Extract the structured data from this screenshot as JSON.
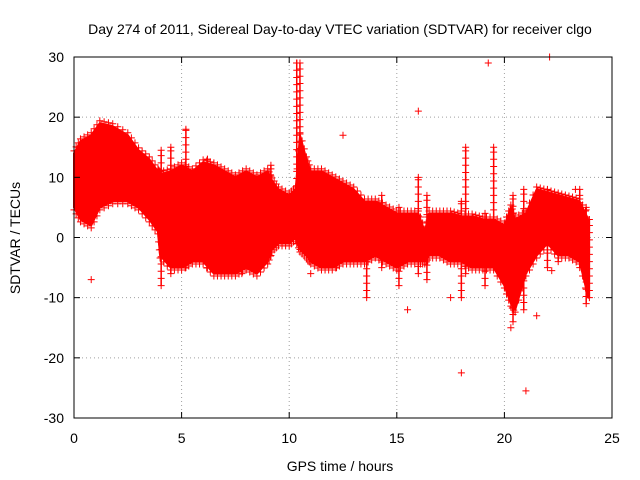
{
  "chart_data": {
    "type": "scatter",
    "title": "Day 274 of 2011, Sidereal Day-to-day VTEC variation (SDTVAR) for receiver clgo",
    "xlabel": "GPS time / hours",
    "ylabel": "SDTVAR / TECUs",
    "xlim": [
      0,
      25
    ],
    "ylim": [
      -30,
      30
    ],
    "xticks": [
      0,
      5,
      10,
      15,
      20,
      25
    ],
    "yticks": [
      -30,
      -20,
      -10,
      0,
      10,
      20,
      30
    ],
    "grid": true,
    "marker": "plus",
    "color": "#ff0000",
    "band": {
      "x": [
        0,
        0.3,
        0.8,
        1.2,
        1.8,
        2.5,
        3.0,
        3.5,
        3.9,
        4.0,
        4.5,
        5.0,
        5.5,
        6.0,
        6.5,
        7.0,
        7.5,
        8.0,
        8.5,
        9.0,
        9.2,
        9.5,
        10.0,
        10.3,
        10.5,
        10.8,
        11.0,
        11.5,
        12.0,
        12.5,
        13.0,
        13.5,
        14.0,
        14.5,
        15.0,
        15.5,
        16.0,
        16.3,
        16.5,
        17.0,
        17.5,
        18.0,
        18.5,
        19.0,
        19.5,
        20.0,
        20.3,
        20.5,
        21.0,
        21.5,
        22.0,
        22.5,
        23.0,
        23.5,
        23.9
      ],
      "upper": [
        14,
        16,
        17,
        19,
        18.5,
        17,
        14.5,
        13,
        11,
        10.5,
        11,
        12,
        11,
        12.5,
        12,
        11,
        10,
        11,
        10,
        11,
        9.5,
        8,
        7,
        8,
        17,
        13,
        11,
        11,
        10,
        9,
        8,
        6,
        6,
        5,
        4,
        4,
        4,
        1,
        4,
        4,
        4,
        3.5,
        3.5,
        3,
        3,
        2,
        5,
        3,
        4,
        8,
        7.5,
        7,
        6.5,
        6,
        3
      ],
      "lower": [
        5,
        3,
        2,
        5,
        6,
        6,
        5,
        3,
        1,
        -3,
        -5,
        -5,
        -4,
        -4,
        -6,
        -6,
        -6,
        -5,
        -6,
        -4,
        -2,
        -1,
        -1,
        0,
        -2,
        -3,
        -4,
        -5,
        -5,
        -4,
        -4,
        -4,
        -3,
        -4,
        -5,
        -4,
        -4,
        -4,
        -3,
        -3,
        -4,
        -4,
        -5,
        -5,
        -5,
        -8,
        -11,
        -12,
        -6,
        -3,
        -1,
        -3,
        -3,
        -4,
        -10
      ]
    },
    "spikes": [
      {
        "x": 0.2,
        "ymin": 6,
        "ymax": 15
      },
      {
        "x": 1.05,
        "ymin": 5,
        "ymax": 12
      },
      {
        "x": 4.05,
        "ymin": -8,
        "ymax": 14.5
      },
      {
        "x": 4.5,
        "ymin": -6,
        "ymax": 15
      },
      {
        "x": 5.2,
        "ymin": -5,
        "ymax": 18
      },
      {
        "x": 6.2,
        "ymin": -5,
        "ymax": 13
      },
      {
        "x": 7.8,
        "ymin": -6,
        "ymax": 8
      },
      {
        "x": 9.15,
        "ymin": -3,
        "ymax": 12
      },
      {
        "x": 10.35,
        "ymin": -1,
        "ymax": 29
      },
      {
        "x": 10.5,
        "ymin": -2,
        "ymax": 29
      },
      {
        "x": 12.2,
        "ymin": -5,
        "ymax": 8
      },
      {
        "x": 13.6,
        "ymin": -10,
        "ymax": 4
      },
      {
        "x": 14.3,
        "ymin": -5,
        "ymax": 7
      },
      {
        "x": 15.1,
        "ymin": -8,
        "ymax": 5
      },
      {
        "x": 16.0,
        "ymin": -6,
        "ymax": 10
      },
      {
        "x": 16.4,
        "ymin": -7,
        "ymax": 7
      },
      {
        "x": 18.0,
        "ymin": -10,
        "ymax": 6
      },
      {
        "x": 18.2,
        "ymin": -6,
        "ymax": 15
      },
      {
        "x": 19.1,
        "ymin": -8,
        "ymax": 4
      },
      {
        "x": 19.5,
        "ymin": -5,
        "ymax": 15
      },
      {
        "x": 20.4,
        "ymin": -14,
        "ymax": 7
      },
      {
        "x": 20.9,
        "ymin": -12,
        "ymax": 8
      },
      {
        "x": 22.0,
        "ymin": -5,
        "ymax": 8
      },
      {
        "x": 22.5,
        "ymin": -4,
        "ymax": 7
      },
      {
        "x": 23.5,
        "ymin": -5,
        "ymax": 8
      },
      {
        "x": 23.8,
        "ymin": -11,
        "ymax": 5
      },
      {
        "x": 23.95,
        "ymin": -10,
        "ymax": 3
      }
    ],
    "outliers": [
      {
        "x": 0.8,
        "y": -7
      },
      {
        "x": 10.35,
        "y": 29
      },
      {
        "x": 12.5,
        "y": 17
      },
      {
        "x": 15.5,
        "y": -12
      },
      {
        "x": 16.0,
        "y": 21
      },
      {
        "x": 18.0,
        "y": -22.5
      },
      {
        "x": 19.25,
        "y": 29
      },
      {
        "x": 21.0,
        "y": -25.5
      },
      {
        "x": 22.1,
        "y": 30
      },
      {
        "x": 11.0,
        "y": -6
      },
      {
        "x": 17.5,
        "y": -10
      },
      {
        "x": 20.3,
        "y": -15
      },
      {
        "x": 22.2,
        "y": -5.5
      },
      {
        "x": 23.3,
        "y": 8
      },
      {
        "x": 21.5,
        "y": -13
      }
    ]
  }
}
